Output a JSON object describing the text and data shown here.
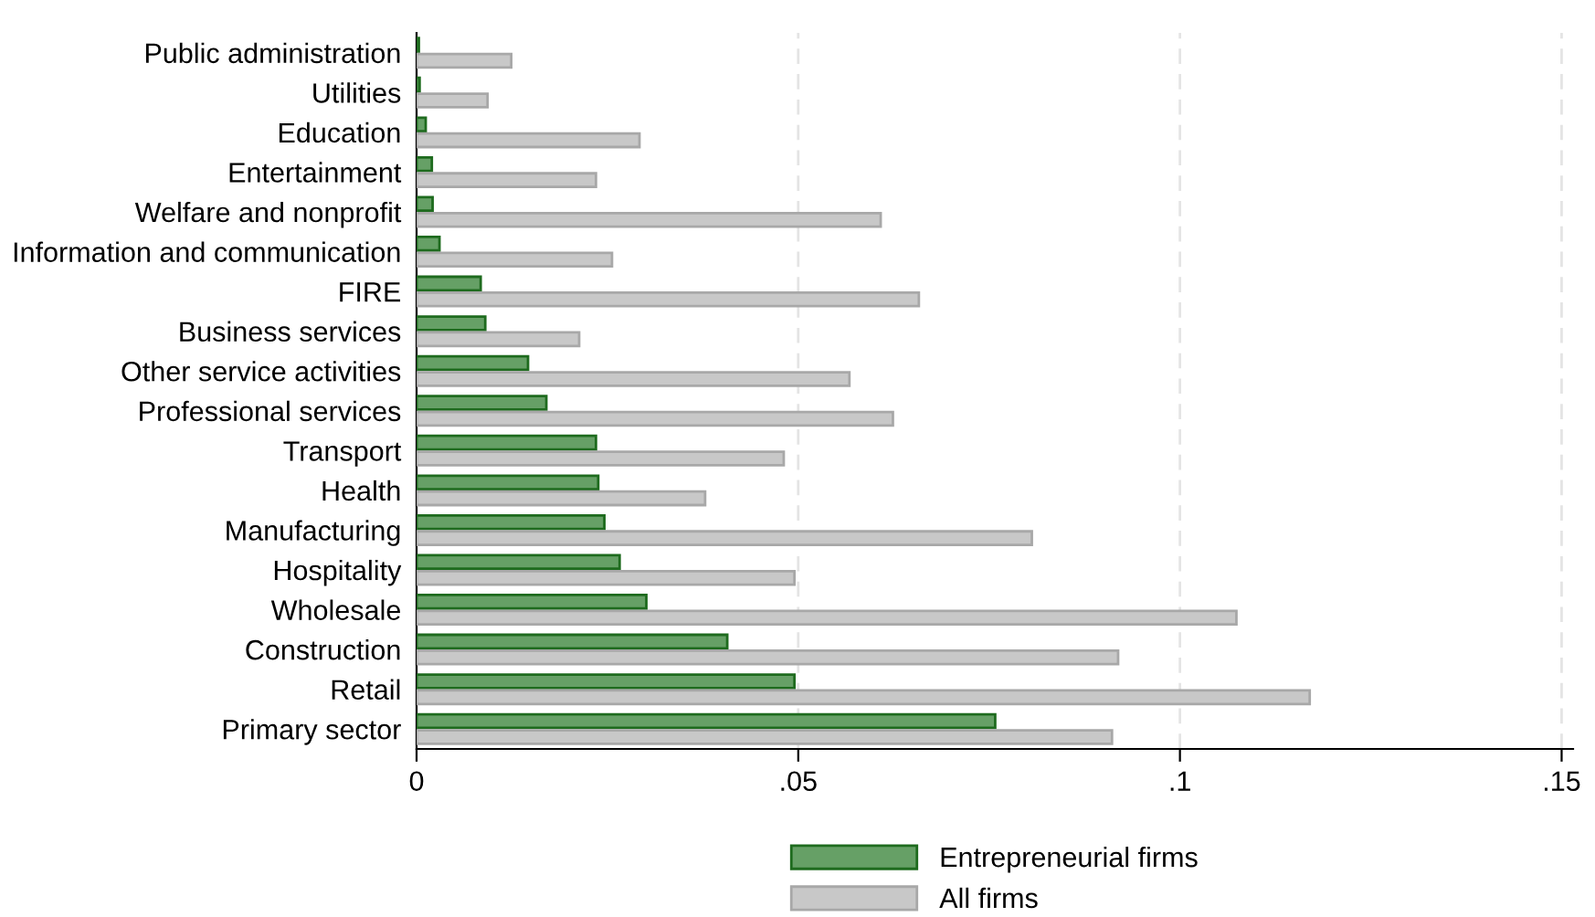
{
  "chart_data": {
    "type": "bar",
    "orientation": "horizontal",
    "categories": [
      "Public administration",
      "Utilities",
      "Education",
      "Entertainment",
      "Welfare and nonprofit",
      "Information and communication",
      "FIRE",
      "Business services",
      "Other service activities",
      "Professional services",
      "Transport",
      "Health",
      "Manufacturing",
      "Hospitality",
      "Wholesale",
      "Construction",
      "Retail",
      "Primary sector"
    ],
    "series": [
      {
        "name": "Entrepreneurial firms",
        "color": "#66a066",
        "values": [
          0.0003,
          0.0004,
          0.0012,
          0.002,
          0.0021,
          0.003,
          0.0084,
          0.009,
          0.0146,
          0.017,
          0.0235,
          0.0238,
          0.0246,
          0.0266,
          0.0301,
          0.0407,
          0.0495,
          0.0758
        ]
      },
      {
        "name": "All firms",
        "color": "#c8c8c8",
        "values": [
          0.0124,
          0.0093,
          0.0292,
          0.0235,
          0.0608,
          0.0256,
          0.0658,
          0.0213,
          0.0567,
          0.0624,
          0.0481,
          0.0378,
          0.0806,
          0.0495,
          0.1074,
          0.0919,
          0.117,
          0.0911
        ]
      }
    ],
    "xlim": [
      0,
      0.1515
    ],
    "xticks": [
      {
        "value": 0,
        "label": "0"
      },
      {
        "value": 0.05,
        "label": ".05"
      },
      {
        "value": 0.1,
        "label": ".1"
      },
      {
        "value": 0.15,
        "label": ".15"
      }
    ],
    "grid": "x",
    "legend": "bottom"
  }
}
